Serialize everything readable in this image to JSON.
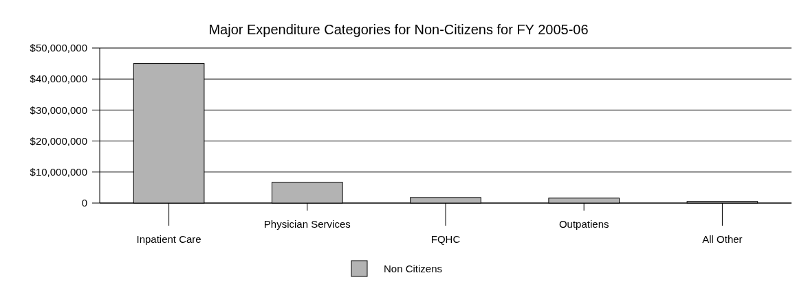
{
  "chart_data": {
    "type": "bar",
    "title": "Major Expenditure Categories for Non-Citizens for FY 2005-06",
    "categories": [
      "Inpatient Care",
      "Physician Services",
      "FQHC",
      "Outpatiens",
      "All Other"
    ],
    "series": [
      {
        "name": "Non Citizens",
        "color": "#b3b3b3",
        "values": [
          45000000,
          6700000,
          1800000,
          1600000,
          500000
        ]
      }
    ],
    "ylim": [
      0,
      50000000
    ],
    "yticks": [
      0,
      {
        "value": 10000000,
        "label": "$10,000,000"
      },
      {
        "value": 20000000,
        "label": "$20,000,000"
      },
      {
        "value": 30000000,
        "label": "$30,000,000"
      },
      {
        "value": 40000000,
        "label": "$40,000,000"
      },
      {
        "value": 50000000,
        "label": "$50,000,000"
      }
    ],
    "grid": "y",
    "legend": "bottom"
  }
}
